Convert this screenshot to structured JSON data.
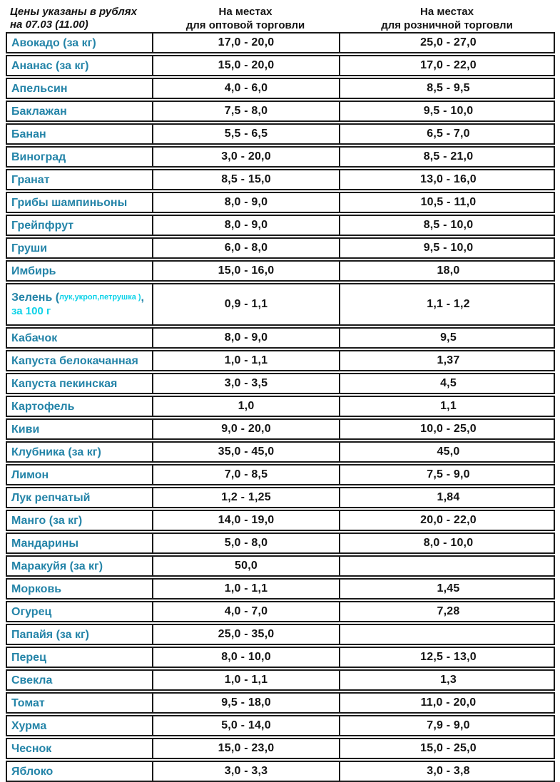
{
  "header": {
    "note_line1": "Цены указаны в рублях",
    "note_line2": "на 07.03 (11.00)",
    "wholesale_line1": "На местах",
    "wholesale_line2": "для оптовой торговли",
    "retail_line1": "На местах",
    "retail_line2": "для розничной торговли"
  },
  "colors": {
    "product_name_teal": "#2484a8",
    "accent_cyan": "#0cd2e8",
    "text_black": "#141414",
    "border_black": "#1a1a1a",
    "background": "#ffffff"
  },
  "table": {
    "rows": [
      {
        "name": "Авокадо (за кг)",
        "wholesale": "17,0 - 20,0",
        "retail": "25,0 - 27,0"
      },
      {
        "name": "Ананас (за кг)",
        "wholesale": "15,0 - 20,0",
        "retail": "17,0 - 22,0"
      },
      {
        "name": "Апельсин",
        "wholesale": "4,0 - 6,0",
        "retail": "8,5 - 9,5"
      },
      {
        "name": "Баклажан",
        "wholesale": "7,5 - 8,0",
        "retail": "9,5 - 10,0"
      },
      {
        "name": "Банан",
        "wholesale": "5,5 - 6,5",
        "retail": "6,5 - 7,0"
      },
      {
        "name": "Виноград",
        "wholesale": "3,0 - 20,0",
        "retail": "8,5 - 21,0"
      },
      {
        "name": "Гранат",
        "wholesale": "8,5 - 15,0",
        "retail": "13,0 - 16,0"
      },
      {
        "name": "Грибы шампиньоны",
        "wholesale": "8,0 - 9,0",
        "retail": "10,5 - 11,0"
      },
      {
        "name": "Грейпфрут",
        "wholesale": "8,0 - 9,0",
        "retail": "8,5 - 10,0"
      },
      {
        "name": "Груши",
        "wholesale": "6,0 - 8,0",
        "retail": "9,5 - 10,0"
      },
      {
        "name": "Имбирь",
        "wholesale": "15,0 - 16,0",
        "retail": "18,0"
      },
      {
        "name": "Зелень (лук,укроп,петрушка ), за 100 г",
        "rich": {
          "main": "Зелень (",
          "sub": "лук,укроп,петрушка )",
          "tail": ",",
          "line2": "за 100 г"
        },
        "tall": true,
        "wholesale": "0,9 - 1,1",
        "retail": "1,1 - 1,2"
      },
      {
        "name": "Кабачок",
        "wholesale": "8,0 - 9,0",
        "retail": "9,5"
      },
      {
        "name": "Капуста белокачанная",
        "wholesale": "1,0 - 1,1",
        "retail": "1,37"
      },
      {
        "name": "Капуста пекинская",
        "wholesale": "3,0 - 3,5",
        "retail": "4,5"
      },
      {
        "name": "Картофель",
        "wholesale": "1,0",
        "retail": "1,1"
      },
      {
        "name": "Киви",
        "wholesale": "9,0 - 20,0",
        "retail": "10,0 - 25,0"
      },
      {
        "name": "Клубника (за кг)",
        "wholesale": "35,0 - 45,0",
        "retail": "45,0"
      },
      {
        "name": "Лимон",
        "wholesale": "7,0 - 8,5",
        "retail": "7,5 - 9,0"
      },
      {
        "name": "Лук репчатый",
        "wholesale": "1,2 - 1,25",
        "retail": "1,84"
      },
      {
        "name": "Манго (за кг)",
        "wholesale": "14,0 - 19,0",
        "retail": "20,0 - 22,0"
      },
      {
        "name": "Мандарины",
        "wholesale": "5,0 - 8,0",
        "retail": "8,0 - 10,0"
      },
      {
        "name": "Маракуйя (за кг)",
        "wholesale": "50,0",
        "retail": ""
      },
      {
        "name": "Морковь",
        "wholesale": "1,0 - 1,1",
        "retail": "1,45"
      },
      {
        "name": "Огурец",
        "wholesale": "4,0 - 7,0",
        "retail": "7,28"
      },
      {
        "name": "Папайя (за кг)",
        "wholesale": "25,0 - 35,0",
        "retail": ""
      },
      {
        "name": "Перец",
        "wholesale": "8,0 - 10,0",
        "retail": "12,5 - 13,0"
      },
      {
        "name": "Свекла",
        "wholesale": "1,0 - 1,1",
        "retail": "1,3"
      },
      {
        "name": "Томат",
        "wholesale": "9,5 - 18,0",
        "retail": "11,0 - 20,0"
      },
      {
        "name": "Хурма",
        "wholesale": "5,0 - 14,0",
        "retail": "7,9 - 9,0"
      },
      {
        "name": "Чеснок",
        "wholesale": "15,0 - 23,0",
        "retail": "15,0 - 25,0"
      },
      {
        "name": "Яблоко",
        "wholesale": "3,0 - 3,3",
        "retail": "3,0 - 3,8"
      }
    ]
  }
}
